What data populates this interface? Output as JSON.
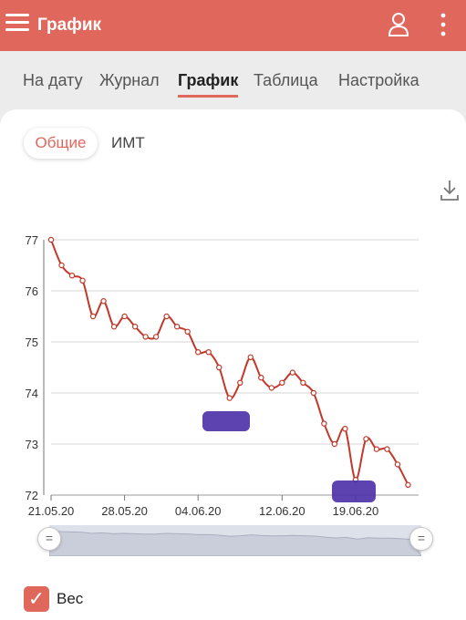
{
  "appbar": {
    "title": "График",
    "menu_icon": "hamburger-icon",
    "user_icon": "user-icon",
    "more_icon": "more-vertical-icon"
  },
  "tabs": [
    {
      "label": "На дату",
      "active": false
    },
    {
      "label": "Журнал",
      "active": false
    },
    {
      "label": "График",
      "active": true
    },
    {
      "label": "Таблица",
      "active": false
    },
    {
      "label": "Настройка",
      "active": false
    }
  ],
  "segments": {
    "general": "Общие",
    "bmi": "ИМТ"
  },
  "download_icon": "download-icon",
  "legend": {
    "label": "Вес",
    "checked": true,
    "check": "✓"
  },
  "colors": {
    "accent": "#e0675c",
    "line": "#c0392b"
  },
  "chart_data": {
    "type": "line",
    "x_ticks": [
      "21.05.20",
      "28.05.20",
      "04.06.20",
      "12.06.20",
      "19.06.20"
    ],
    "y_ticks": [
      "72",
      "73",
      "74",
      "75",
      "76",
      "77"
    ],
    "ylim": [
      72,
      77
    ],
    "grid": true,
    "series": [
      {
        "name": "Вес",
        "x": [
          "21.05.20",
          "22.05.20",
          "23.05.20",
          "24.05.20",
          "25.05.20",
          "26.05.20",
          "27.05.20",
          "28.05.20",
          "29.05.20",
          "30.05.20",
          "31.05.20",
          "01.06.20",
          "02.06.20",
          "03.06.20",
          "04.06.20",
          "05.06.20",
          "06.06.20",
          "07.06.20",
          "08.06.20",
          "09.06.20",
          "10.06.20",
          "11.06.20",
          "12.06.20",
          "13.06.20",
          "14.06.20",
          "15.06.20",
          "16.06.20",
          "17.06.20",
          "18.06.20",
          "19.06.20",
          "20.06.20",
          "21.06.20",
          "22.06.20",
          "23.06.20",
          "24.06.20",
          "25.06.20"
        ],
        "values": [
          77.0,
          76.5,
          76.3,
          76.2,
          75.5,
          75.8,
          75.3,
          75.5,
          75.3,
          75.1,
          75.1,
          75.5,
          75.3,
          75.2,
          74.8,
          74.8,
          74.5,
          73.9,
          74.2,
          74.7,
          74.3,
          74.1,
          74.2,
          74.4,
          74.2,
          74.0,
          73.4,
          73.0,
          73.3,
          72.3,
          73.1,
          72.9,
          72.9,
          72.6,
          72.2,
          null
        ]
      }
    ]
  }
}
